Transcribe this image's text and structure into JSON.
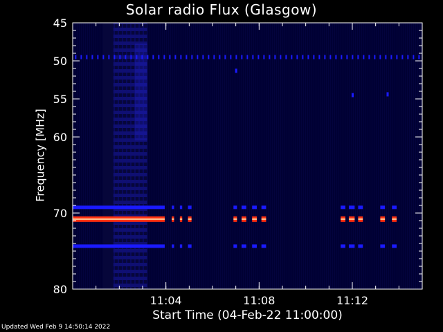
{
  "chart_data": {
    "type": "heatmap",
    "title": "Solar radio Flux (Glasgow)",
    "xlabel": "Start Time (04-Feb-22 11:00:00)",
    "ylabel": "Frequency [MHz]",
    "x_unit": "minutes after 11:00:00",
    "xlim": [
      0,
      15
    ],
    "ylim": [
      45,
      80
    ],
    "y_reversed": true,
    "x_ticks": [
      {
        "value": 4,
        "label": "11:04"
      },
      {
        "value": 8,
        "label": "11:08"
      },
      {
        "value": 12,
        "label": "11:12"
      }
    ],
    "y_ticks": [
      {
        "value": 45,
        "label": "45"
      },
      {
        "value": 50,
        "label": "50"
      },
      {
        "value": 55,
        "label": "55"
      },
      {
        "value": 60,
        "label": "60"
      },
      {
        "value": 70,
        "label": "70"
      },
      {
        "value": 80,
        "label": "80"
      }
    ],
    "grid": false,
    "colors": {
      "background": "#000033",
      "weak_band": "#1a1aff",
      "strong_band": "#ff3010",
      "strong_band_core": "#ffd0a0",
      "axes": "#ffffff"
    },
    "broadband_block": {
      "x_start": 1.3,
      "x_end": 3.2,
      "y_start": 45,
      "y_end": 80
    },
    "bands": [
      {
        "freq": 49.5,
        "type": "dotted",
        "x_start": 0.1,
        "x_end": 15.0
      },
      {
        "freq": 69.3,
        "type": "weak",
        "segments": [
          [
            0.0,
            3.95
          ],
          [
            4.25,
            4.35
          ],
          [
            4.6,
            4.7
          ],
          [
            4.95,
            5.1
          ],
          [
            6.9,
            7.05
          ],
          [
            7.25,
            7.45
          ],
          [
            7.7,
            7.9
          ],
          [
            8.1,
            8.3
          ],
          [
            11.5,
            11.7
          ],
          [
            11.85,
            12.1
          ],
          [
            12.25,
            12.45
          ],
          [
            13.2,
            13.4
          ],
          [
            13.7,
            13.9
          ]
        ]
      },
      {
        "freq": 70.8,
        "type": "strong",
        "segments": [
          [
            0.0,
            3.95
          ],
          [
            4.25,
            4.35
          ],
          [
            4.6,
            4.7
          ],
          [
            4.95,
            5.1
          ],
          [
            6.9,
            7.05
          ],
          [
            7.25,
            7.45
          ],
          [
            7.7,
            7.9
          ],
          [
            8.1,
            8.3
          ],
          [
            11.5,
            11.7
          ],
          [
            11.85,
            12.1
          ],
          [
            12.25,
            12.45
          ],
          [
            13.2,
            13.4
          ],
          [
            13.7,
            13.9
          ]
        ]
      },
      {
        "freq": 74.4,
        "type": "weak",
        "segments": [
          [
            0.0,
            3.95
          ],
          [
            4.25,
            4.35
          ],
          [
            4.6,
            4.7
          ],
          [
            4.95,
            5.1
          ],
          [
            6.9,
            7.05
          ],
          [
            7.25,
            7.45
          ],
          [
            7.7,
            7.9
          ],
          [
            8.1,
            8.3
          ],
          [
            11.5,
            11.7
          ],
          [
            11.85,
            12.1
          ],
          [
            12.25,
            12.45
          ],
          [
            13.2,
            13.4
          ],
          [
            13.7,
            13.9
          ]
        ]
      }
    ],
    "spots": [
      {
        "x": 7.0,
        "freq": 51.3
      },
      {
        "x": 12.0,
        "freq": 54.5
      },
      {
        "x": 13.5,
        "freq": 54.4
      }
    ]
  },
  "footer": {
    "updated": "Updated Wed Feb  9 14:50:14 2022"
  }
}
